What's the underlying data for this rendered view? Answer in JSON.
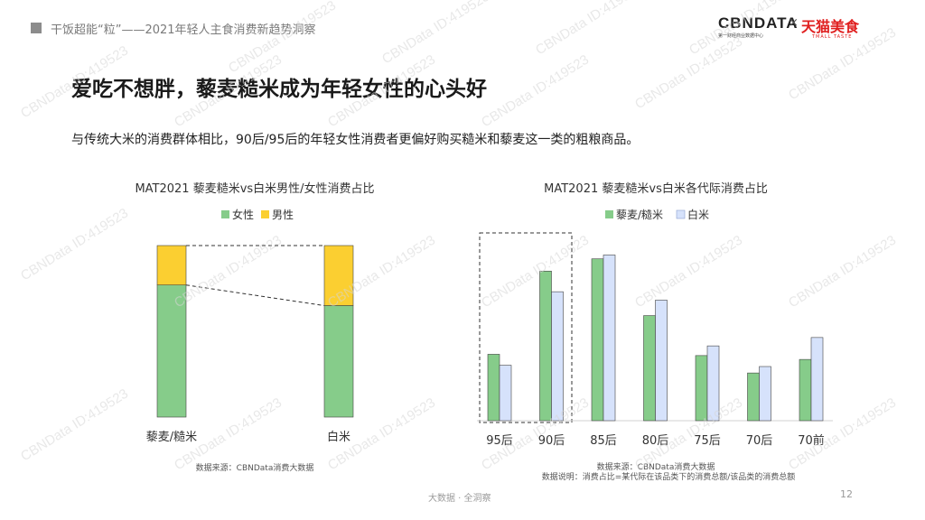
{
  "header": {
    "text": "干饭超能“粒”——2021年轻人主食消费新趋势洞察"
  },
  "logo": {
    "cbndata": "CBNDATA",
    "cbndata_sub": "第一财经商业数据中心",
    "times": "×",
    "tmall": "天猫美食",
    "tmall_sub": "TMALL TASTE"
  },
  "title": "爱吃不想胖，藜麦糙米成为年轻女性的心头好",
  "subtitle": "与传统大米的消费群体相比，90后/95后的年轻女性消费者更偏好购买糙米和藜麦这一类的粗粮商品。",
  "colors": {
    "green": "#86cc8a",
    "yellow": "#fbcf31",
    "lightblue": "#d6e2fb",
    "outline": "#333333"
  },
  "chart_data": [
    {
      "type": "bar",
      "stacked": true,
      "percent": true,
      "title": "MAT2021 藜麦糙米vs白米男性/女性消费占比",
      "categories": [
        "藜麦/糙米",
        "白米"
      ],
      "series": [
        {
          "name": "女性",
          "color": "#86cc8a",
          "values": [
            77,
            65
          ]
        },
        {
          "name": "男性",
          "color": "#fbcf31",
          "values": [
            23,
            35
          ]
        }
      ],
      "legend": "top",
      "grid": false,
      "source": "数据来源：CBNData消费大数据"
    },
    {
      "type": "bar",
      "title": "MAT2021 藜麦糙米vs白米各代际消费占比",
      "categories": [
        "95后",
        "90后",
        "85后",
        "80后",
        "75后",
        "70后",
        "70前"
      ],
      "series": [
        {
          "name": "藜麦/糙米",
          "color": "#86cc8a",
          "values": [
            10.3,
            23.2,
            25.1,
            16.3,
            10.1,
            7.4,
            9.5
          ]
        },
        {
          "name": "白米",
          "color": "#d6e2fb",
          "values": [
            8.6,
            20.0,
            25.7,
            18.7,
            11.6,
            8.4,
            12.9
          ]
        }
      ],
      "ylim": [
        0,
        28
      ],
      "highlighted_categories": [
        "95后",
        "90后"
      ],
      "legend": "top",
      "grid": false,
      "source": "数据来源：CBNData消费大数据",
      "note": "数据说明：消费占比=某代际在该品类下的消费总额/该品类的消费总额"
    }
  ],
  "footer": {
    "center": "大数据 · 全洞察",
    "page": "12"
  },
  "watermark": "CBNData ID:419523"
}
